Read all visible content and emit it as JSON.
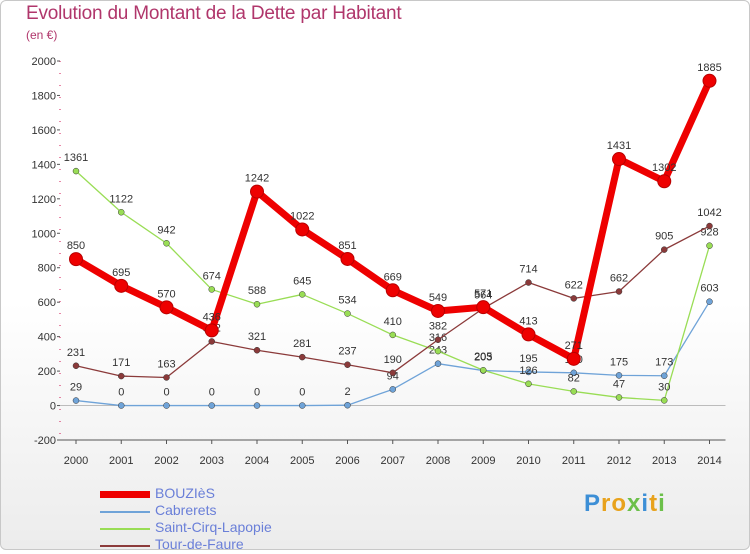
{
  "title": "Evolution du Montant de la Dette par Habitant",
  "subtitle": "(en €)",
  "chart_data": {
    "type": "line",
    "x": [
      "2000",
      "2001",
      "2002",
      "2003",
      "2004",
      "2005",
      "2006",
      "2007",
      "2008",
      "2009",
      "2010",
      "2011",
      "2012",
      "2013",
      "2014"
    ],
    "ylim": [
      -200,
      2000
    ],
    "yticks": [
      -200,
      0,
      200,
      400,
      600,
      800,
      1000,
      1200,
      1400,
      1600,
      1800,
      2000
    ],
    "grid": false,
    "legend_position": "bottom-left",
    "series": [
      {
        "name": "BOUZIèS",
        "color": "#ee0000",
        "values": [
          850,
          695,
          570,
          436,
          1242,
          1022,
          851,
          669,
          549,
          571,
          413,
          271,
          1431,
          1302,
          1885
        ]
      },
      {
        "name": "Cabrerets",
        "color": "#6fa3d8",
        "values": [
          29,
          0,
          0,
          0,
          0,
          0,
          2,
          94,
          243,
          203,
          195,
          190,
          175,
          173,
          603
        ]
      },
      {
        "name": "Saint-Cirq-Lapopie",
        "color": "#99dd55",
        "values": [
          1361,
          1122,
          942,
          674,
          588,
          645,
          534,
          410,
          316,
          205,
          126,
          82,
          47,
          30,
          928
        ]
      },
      {
        "name": "Tour-de-Faure",
        "color": "#8b3a3a",
        "values": [
          231,
          171,
          163,
          372,
          321,
          281,
          237,
          190,
          382,
          564,
          714,
          622,
          662,
          905,
          1042
        ]
      }
    ]
  },
  "logo": {
    "letters": [
      "P",
      "r",
      "o",
      "x",
      "i",
      "t",
      "i"
    ],
    "colors": [
      "#3d8fd6",
      "#e8a21c",
      "#e8a21c",
      "#6cc04a",
      "#3d8fd6",
      "#e8a21c",
      "#6cc04a"
    ]
  }
}
